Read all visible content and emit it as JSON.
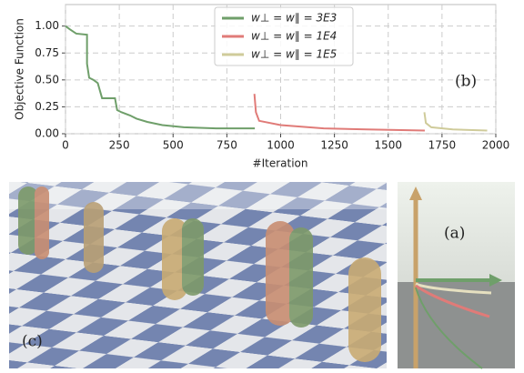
{
  "chart_data": {
    "type": "line",
    "annotation": "(b)",
    "xlabel": "#Iteration",
    "ylabel": "Objective Function",
    "xlim": [
      0,
      2000
    ],
    "ylim": [
      0,
      1.2
    ],
    "xticks": [
      0,
      250,
      500,
      750,
      1000,
      1250,
      1500,
      1750,
      2000
    ],
    "yticks": [
      {
        "value": 0,
        "label": "0.00"
      },
      {
        "value": 0.25,
        "label": "0.25"
      },
      {
        "value": 0.5,
        "label": "0.50"
      },
      {
        "value": 0.75,
        "label": "0.75"
      },
      {
        "value": 1,
        "label": "1.00"
      }
    ],
    "grid": true,
    "legend": "upper center",
    "series": [
      {
        "name": "w⊥ = w∥ = 3E3",
        "color": "#6f9f6a",
        "x": [
          0,
          20,
          50,
          100,
          100,
          110,
          130,
          150,
          170,
          230,
          240,
          260,
          300,
          330,
          380,
          450,
          550,
          700,
          880
        ],
        "values": [
          1.0,
          0.97,
          0.93,
          0.92,
          0.65,
          0.52,
          0.5,
          0.47,
          0.33,
          0.33,
          0.22,
          0.2,
          0.17,
          0.14,
          0.11,
          0.08,
          0.06,
          0.05,
          0.05
        ]
      },
      {
        "name": "w⊥ = w∥ = 1E4",
        "color": "#e07b78",
        "x": [
          878,
          885,
          900,
          1000,
          1200,
          1400,
          1670
        ],
        "values": [
          0.37,
          0.2,
          0.12,
          0.08,
          0.05,
          0.04,
          0.03
        ]
      },
      {
        "name": "w⊥ = w∥ = 1E5",
        "color": "#cfcb9a",
        "x": [
          1668,
          1675,
          1700,
          1800,
          1960
        ],
        "values": [
          0.2,
          0.1,
          0.06,
          0.04,
          0.03
        ]
      }
    ]
  },
  "panels": {
    "c": "(c)",
    "a": "(a)"
  }
}
